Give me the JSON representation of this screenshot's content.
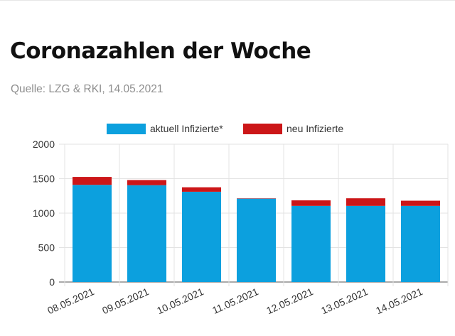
{
  "header": {
    "title": "Coronazahlen der Woche",
    "source": "Quelle: LZG & RKI, 14.05.2021"
  },
  "chart_data": {
    "type": "bar",
    "stacked": true,
    "categories": [
      "08.05.2021",
      "09.05.2021",
      "10.05.2021",
      "11.05.2021",
      "12.05.2021",
      "13.05.2021",
      "14.05.2021"
    ],
    "series": [
      {
        "name": "aktuell Infizierte*",
        "color": "#0ca0de",
        "values": [
          1410,
          1405,
          1310,
          1210,
          1105,
          1105,
          1105
        ]
      },
      {
        "name": "neu Infizierte",
        "color": "#cc1618",
        "values": [
          115,
          75,
          65,
          5,
          80,
          110,
          75
        ]
      }
    ],
    "ylim": [
      0,
      2000
    ],
    "yticks": [
      0,
      500,
      1000,
      1500,
      2000
    ],
    "grid": true,
    "legend_position": "top-center",
    "title": "",
    "xlabel": "",
    "ylabel": ""
  }
}
